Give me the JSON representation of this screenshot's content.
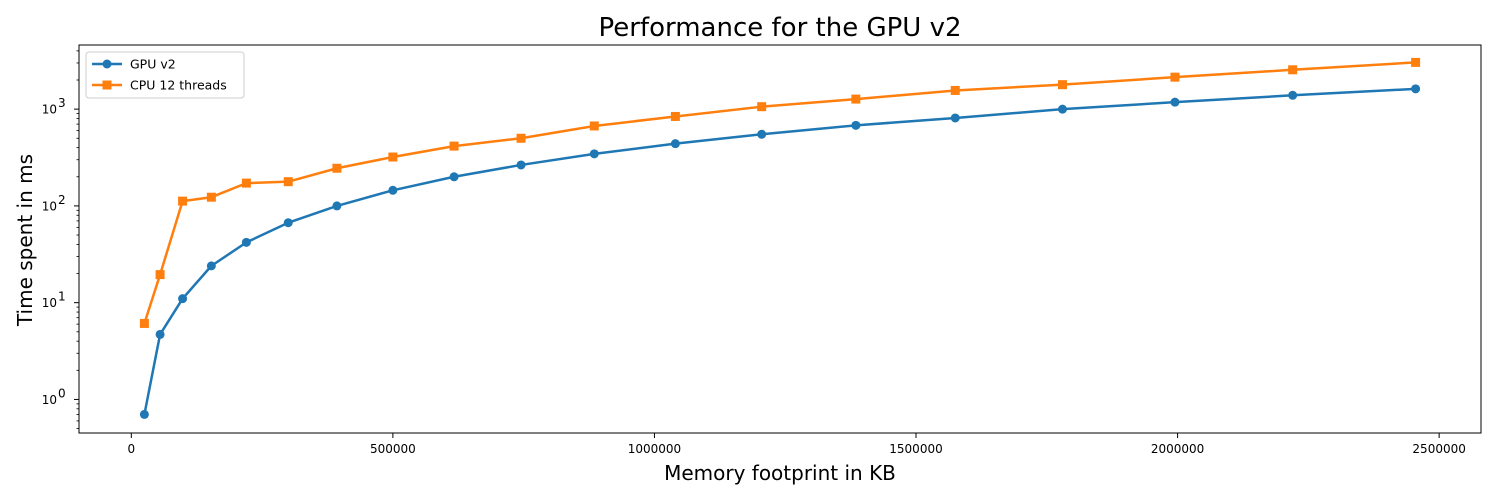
{
  "chart_data": {
    "type": "line",
    "title": "Performance for the GPU v2",
    "xlabel": "Memory footprint in KB",
    "ylabel": "Time spent in ms",
    "yscale": "log",
    "xlim": [
      -100000,
      2580000
    ],
    "ylim": [
      0.45,
      4600
    ],
    "x_ticks": [
      0,
      500000,
      1000000,
      1500000,
      2000000,
      2500000
    ],
    "y_ticks": [
      1,
      10,
      100,
      1000
    ],
    "grid": false,
    "legend_position": "top-left",
    "series": [
      {
        "name": "GPU v2",
        "color": "#1f77b4",
        "marker": "circle",
        "x": [
          25000,
          55000,
          98000,
          153000,
          220000,
          300000,
          393000,
          500000,
          617000,
          745000,
          885000,
          1040000,
          1205000,
          1385000,
          1575000,
          1780000,
          1995000,
          2220000,
          2455000
        ],
        "y": [
          0.7,
          4.7,
          11,
          24,
          42,
          67,
          100,
          145,
          200,
          265,
          345,
          440,
          550,
          680,
          810,
          1000,
          1180,
          1390,
          1620
        ]
      },
      {
        "name": "CPU 12 threads",
        "color": "#ff7f0e",
        "marker": "square",
        "x": [
          25000,
          55000,
          98000,
          153000,
          220000,
          300000,
          393000,
          500000,
          617000,
          745000,
          885000,
          1040000,
          1205000,
          1385000,
          1575000,
          1780000,
          1995000,
          2220000,
          2455000
        ],
        "y": [
          6.1,
          19.5,
          112,
          123,
          172,
          178,
          245,
          320,
          415,
          500,
          670,
          840,
          1060,
          1270,
          1560,
          1790,
          2140,
          2550,
          3040
        ]
      }
    ]
  }
}
